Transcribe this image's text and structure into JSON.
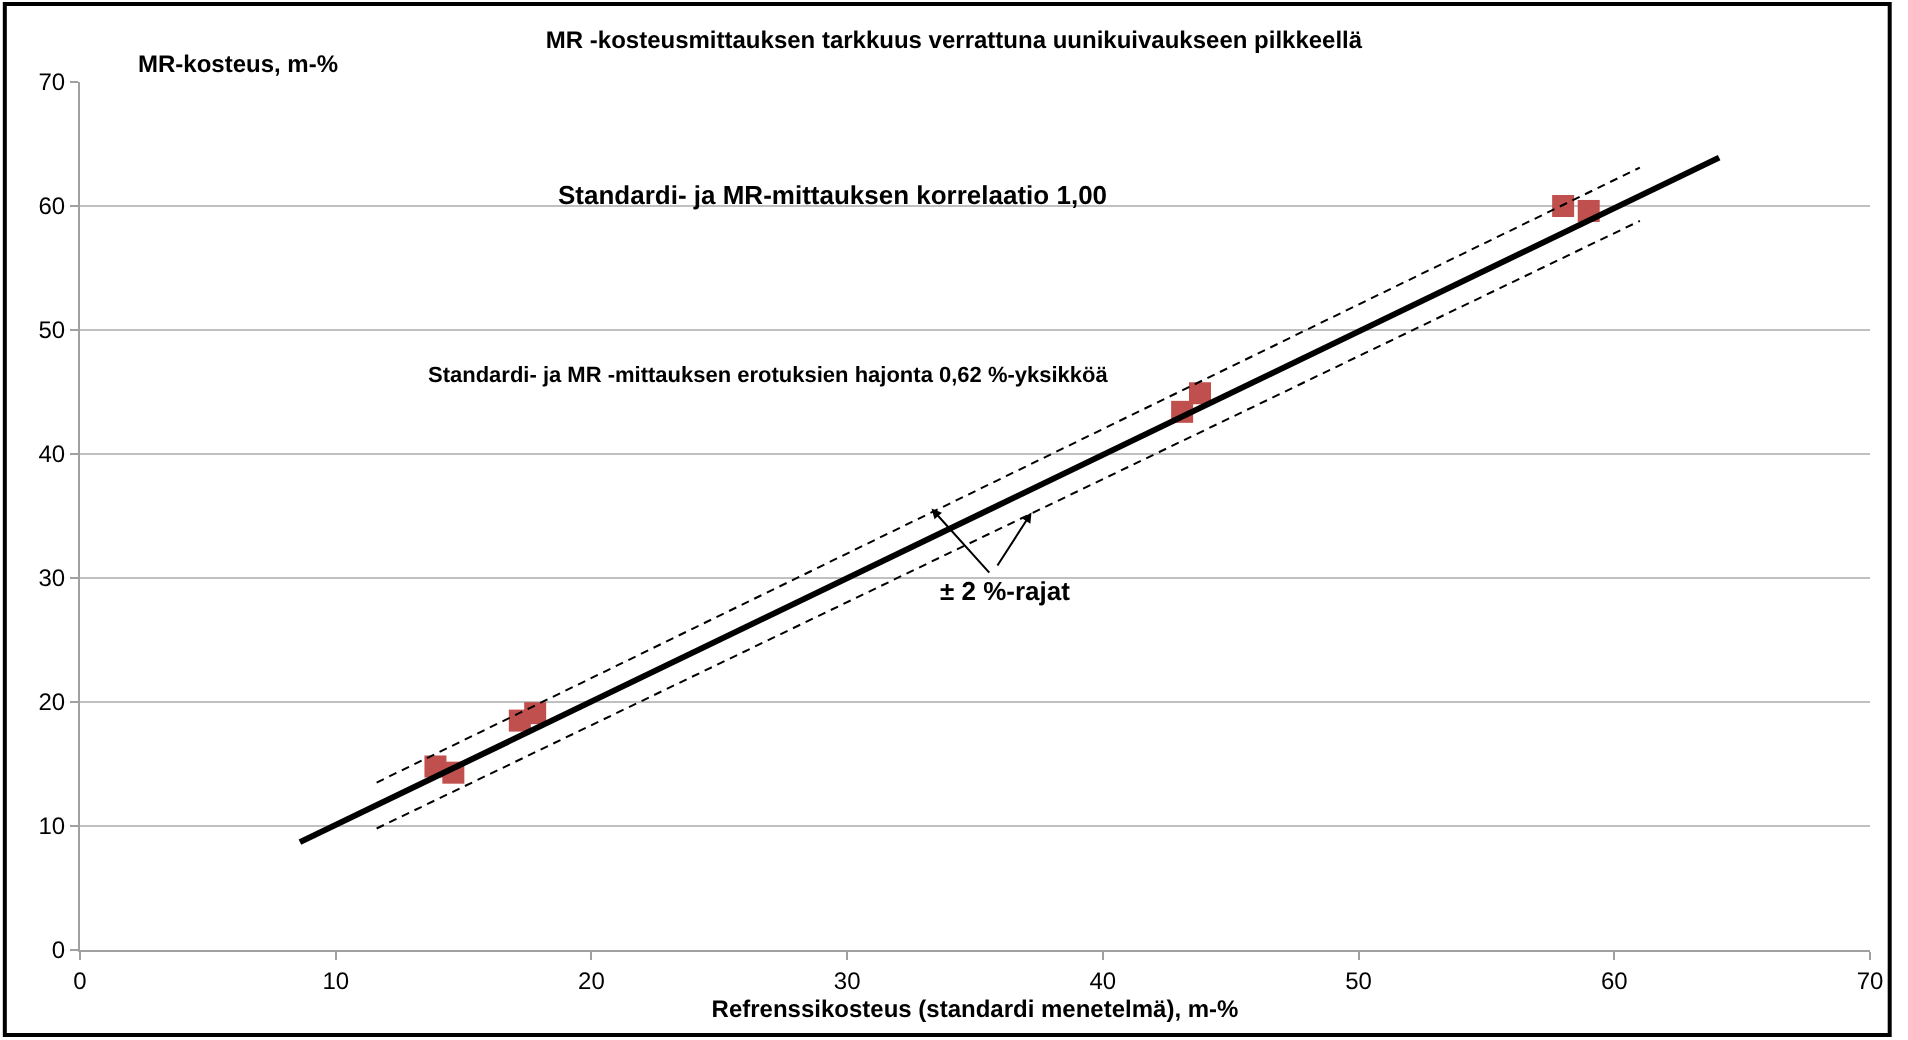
{
  "chart_data": {
    "type": "scatter",
    "title": "MR -kosteusmittauksen tarkkuus verrattuna uunikuivaukseen pilkkeellä",
    "xlabel": "Refrenssikosteus (standardi menetelmä), m-%",
    "ylabel": "MR-kosteus, m-%",
    "x": [
      13.9,
      14.6,
      17.2,
      17.8,
      43.1,
      43.8,
      58.0,
      59.0
    ],
    "series": [
      {
        "color": "#c0504d",
        "values": [
          14.8,
          14.3,
          18.5,
          19.1,
          43.4,
          44.9,
          60.0,
          59.6
        ],
        "marker": "square"
      },
      {
        "type": "line",
        "color": "#000000",
        "x": [
          8.6,
          64.1
        ],
        "values": [
          8.7,
          63.9
        ],
        "line_style": "solid"
      },
      {
        "type": "line",
        "color": "#000000",
        "x": [
          11.6,
          61.0
        ],
        "values": [
          13.5,
          63.1
        ],
        "line_style": "dashed"
      },
      {
        "type": "line",
        "color": "#000000",
        "x": [
          11.6,
          61.0
        ],
        "values": [
          9.8,
          58.8
        ],
        "line_style": "dashed"
      }
    ],
    "xlim": [
      0,
      70
    ],
    "xticks": [
      0,
      10,
      20,
      30,
      40,
      50,
      60,
      70
    ],
    "ylim": [
      0,
      70
    ],
    "yticks": [
      0,
      10,
      20,
      30,
      40,
      50,
      60,
      70
    ],
    "grid": "y",
    "legend": false,
    "annotations": [
      "Standardi- ja MR-mittauksen korrelaatio 1,00",
      "Standardi- ja MR -mittauksen erotuksien hajonta 0,62 %-yksikköä",
      {
        "text": "± 2 %-rajat",
        "x": 33.3,
        "y": 35.6
      }
    ]
  }
}
